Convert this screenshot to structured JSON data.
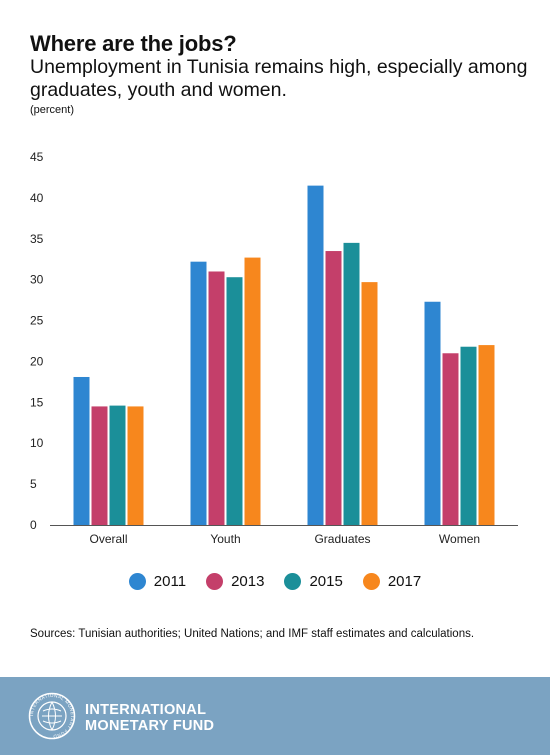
{
  "header": {
    "title": "Where are the jobs?",
    "subtitle": "Unemployment in Tunisia remains high, especially among graduates, youth and women.",
    "unit": "(percent)"
  },
  "chart_data": {
    "type": "bar",
    "categories": [
      "Overall",
      "Youth",
      "Graduates",
      "Women"
    ],
    "series": [
      {
        "name": "2011",
        "color": "#2e86d1",
        "values": [
          18.1,
          32.2,
          41.5,
          27.3
        ]
      },
      {
        "name": "2013",
        "color": "#c43f6a",
        "values": [
          14.5,
          31.0,
          33.5,
          21.0
        ]
      },
      {
        "name": "2015",
        "color": "#1b8f99",
        "values": [
          14.6,
          30.3,
          34.5,
          21.8
        ]
      },
      {
        "name": "2017",
        "color": "#f7871d",
        "values": [
          14.5,
          32.7,
          29.7,
          22.0
        ]
      }
    ],
    "ylim": [
      0,
      45
    ],
    "yticks": [
      "0",
      "5",
      "10",
      "15",
      "20",
      "25",
      "30",
      "35",
      "40",
      "45"
    ],
    "grid": false,
    "legend_position": "bottom"
  },
  "source": "Sources: Tunisian authorities; United Nations; and IMF staff estimates and calculations.",
  "footer": {
    "line1": "INTERNATIONAL",
    "line2": "MONETARY FUND",
    "seal_text": "INTERNATIONAL MONETARY FUND",
    "background": "#7ba3c2"
  }
}
